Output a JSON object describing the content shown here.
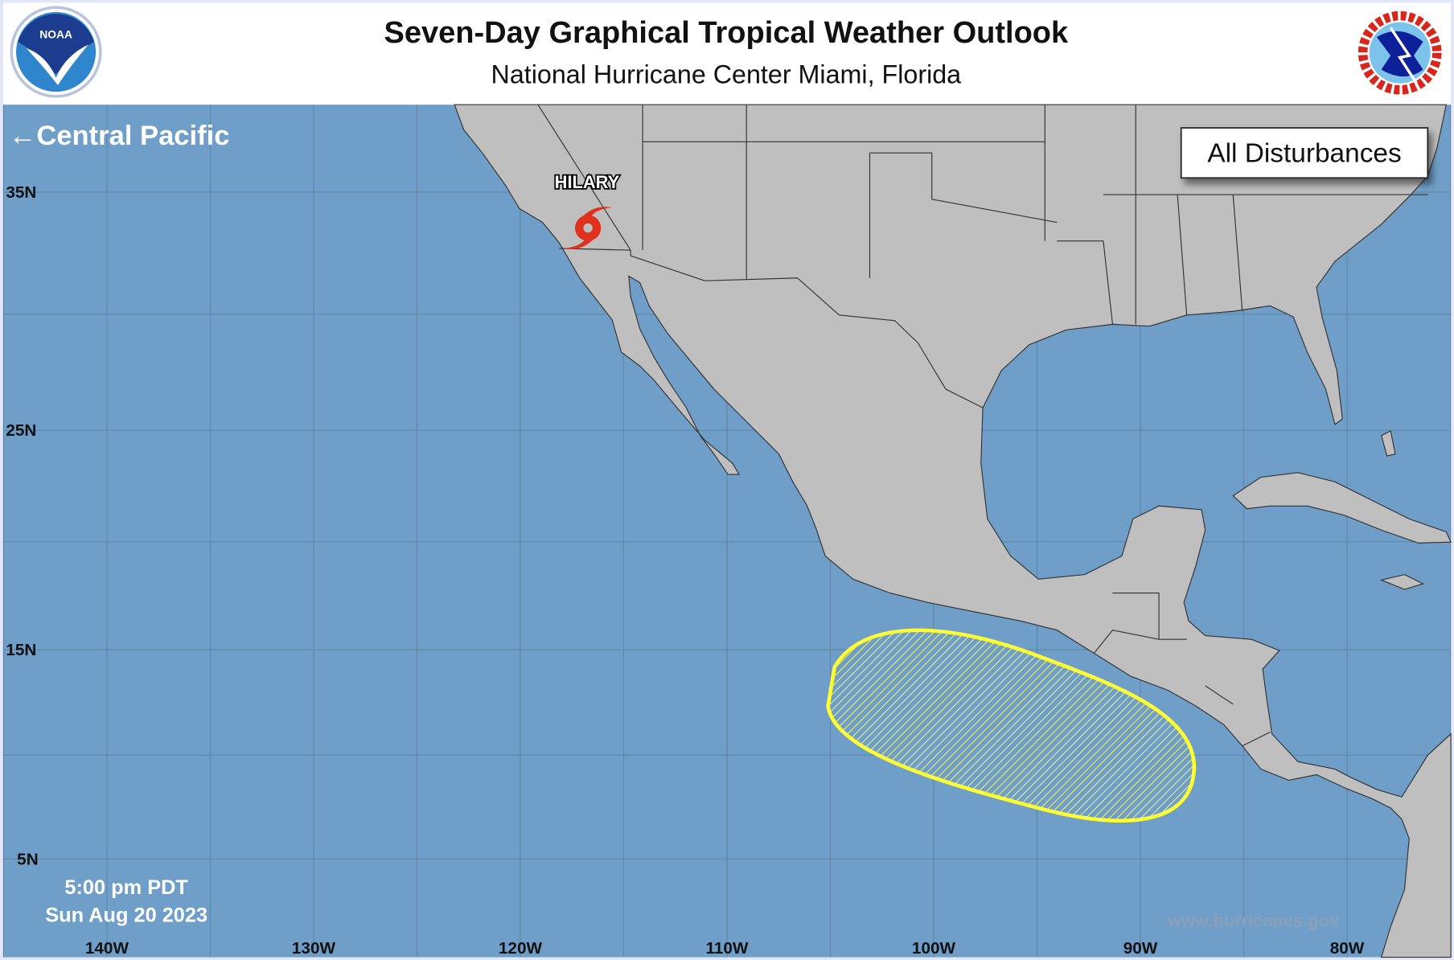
{
  "header": {
    "title": "Seven-Day Graphical Tropical Weather Outlook",
    "subtitle": "National Hurricane Center  Miami, Florida",
    "left_logo": {
      "name": "NOAA",
      "icon": "noaa-logo"
    },
    "right_logo": {
      "name": "NATIONAL WEATHER SERVICE",
      "icon": "nws-logo"
    }
  },
  "map": {
    "colors": {
      "ocean": "#6f9fc8",
      "land": "#bfbfbf",
      "grid": "#5f86a8",
      "disturbance": "#ffff33",
      "storm": "#e0301e"
    },
    "nav_link": {
      "arrow": "←",
      "label": "Central Pacific"
    },
    "filter_button": "All Disturbances",
    "lat_labels": [
      {
        "lat": 35,
        "label": "35N"
      },
      {
        "lat": 25,
        "label": "25N"
      },
      {
        "lat": 15,
        "label": "15N"
      },
      {
        "lat": 5,
        "label": "5N"
      }
    ],
    "lon_labels": [
      {
        "lon": -140,
        "label": "140W"
      },
      {
        "lon": -130,
        "label": "130W"
      },
      {
        "lon": -120,
        "label": "120W"
      },
      {
        "lon": -110,
        "label": "110W"
      },
      {
        "lon": -100,
        "label": "100W"
      },
      {
        "lon": -90,
        "label": "90W"
      },
      {
        "lon": -80,
        "label": "80W"
      }
    ],
    "storms": [
      {
        "name": "HILARY",
        "icon": "tropical-storm-icon"
      }
    ],
    "disturbances": [
      {
        "fill": "hatched",
        "color": "#ffff33"
      }
    ],
    "timestamp": {
      "time": "5:00 pm PDT",
      "date": "Sun Aug 20 2023"
    },
    "website": "www.hurricanes.gov"
  }
}
